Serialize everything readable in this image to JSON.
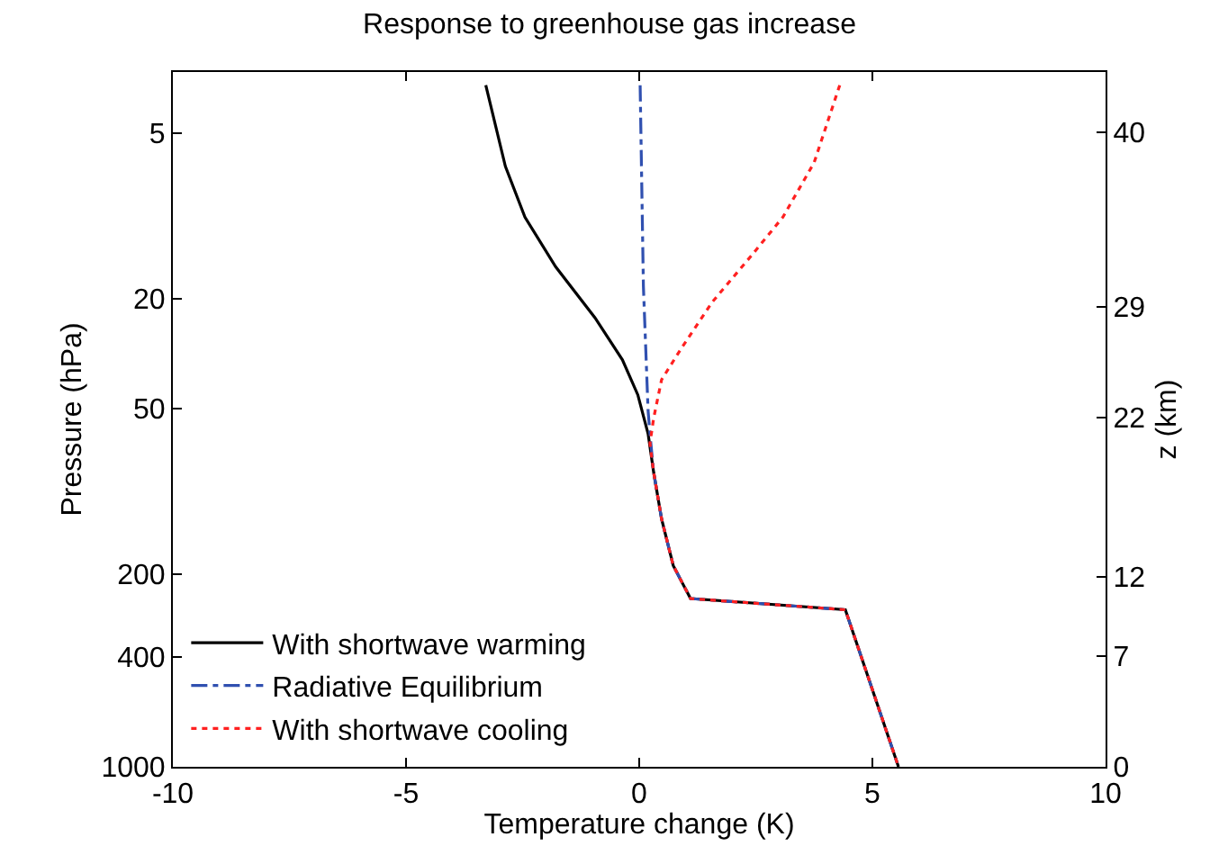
{
  "chart_data": {
    "type": "line",
    "title": "Response to greenhouse gas increase",
    "xlabel": "Temperature change (K)",
    "ylabel": "Pressure (hPa)",
    "y2label": "z (km)",
    "xlim": [
      -10,
      10
    ],
    "xticks": [
      -10,
      -5,
      0,
      5,
      10
    ],
    "ylim": [
      1000,
      3
    ],
    "yticks": [
      5,
      20,
      50,
      200,
      400,
      1000
    ],
    "y2lim": [
      0,
      43.8
    ],
    "y2ticks": [
      40,
      29,
      22,
      12,
      7,
      0
    ],
    "log": "y",
    "legend": "bottom left",
    "marker": "none",
    "series": [
      {
        "name": "With shortwave warming",
        "color": "#000000",
        "line_style": "solid",
        "x": [
          -3.29,
          -2.87,
          -2.45,
          -1.79,
          -0.95,
          -0.36,
          -0.03,
          0.19,
          0.31,
          0.48,
          0.73,
          1.1,
          4.42,
          5.56
        ],
        "values": [
          3.35,
          6.6,
          10.1,
          15.3,
          23.4,
          33.3,
          44.6,
          61.7,
          85.3,
          126,
          186,
          245,
          269,
          1000
        ]
      },
      {
        "name": "Radiative Equilibrium",
        "color": "#3050b0",
        "line_style": "dashdot",
        "x": [
          0.02,
          0.09,
          0.19,
          0.23,
          0.31,
          0.48,
          0.73,
          1.1,
          4.42,
          5.56
        ],
        "values": [
          3.35,
          18,
          50.8,
          61.7,
          85.3,
          126,
          186,
          245,
          269,
          1000
        ]
      },
      {
        "name": "With shortwave cooling",
        "color": "#ff2020",
        "line_style": "dotted",
        "x": [
          4.3,
          3.75,
          3.08,
          2.41,
          1.57,
          0.9,
          0.48,
          0.31,
          0.23,
          0.31,
          0.48,
          0.73,
          1.1,
          4.42,
          5.56
        ],
        "values": [
          3.35,
          6.4,
          10.1,
          13.9,
          20.5,
          30.3,
          39.3,
          54.2,
          67,
          85.3,
          126,
          186,
          245,
          269,
          1000
        ]
      }
    ]
  }
}
